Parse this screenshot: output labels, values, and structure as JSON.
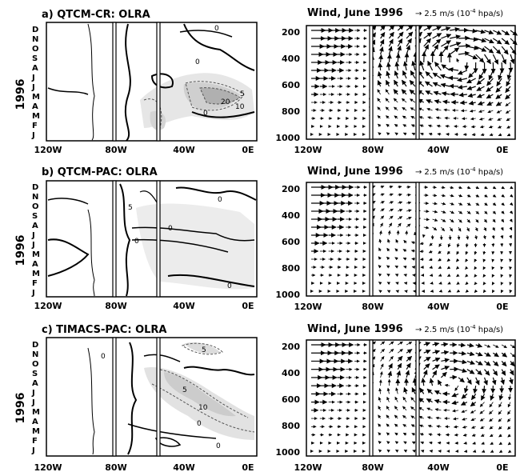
{
  "figure": {
    "year_label": "1996",
    "panels": [
      {
        "left_title": "a) QTCM-CR:   OLRA",
        "right_title": "Wind, June 1996",
        "contour_labels": [
          "0",
          "0",
          "5",
          "20",
          "10",
          "0"
        ]
      },
      {
        "left_title": "b) QTCM-PAC:   OLRA",
        "right_title": "Wind, June 1996",
        "contour_labels": [
          "5",
          "0",
          "0",
          "0",
          "0"
        ]
      },
      {
        "left_title": "c) TIMACS-PAC:   OLRA",
        "right_title": "Wind, June 1996",
        "contour_labels": [
          "5",
          "0",
          "5",
          "10",
          "0",
          "0"
        ]
      }
    ],
    "months": [
      "D",
      "N",
      "O",
      "S",
      "A",
      "J",
      "J",
      "M",
      "A",
      "M",
      "F",
      "J"
    ],
    "lon_ticks": [
      "120W",
      "80W",
      "40W",
      "0E"
    ],
    "pressure_ticks": [
      "200",
      "400",
      "600",
      "800",
      "1000"
    ],
    "ref_vector": {
      "arrow": "→",
      "text_main": "2.5 m/s (10",
      "text_sup": "-4",
      "text_tail": " hpa/s)"
    }
  }
}
